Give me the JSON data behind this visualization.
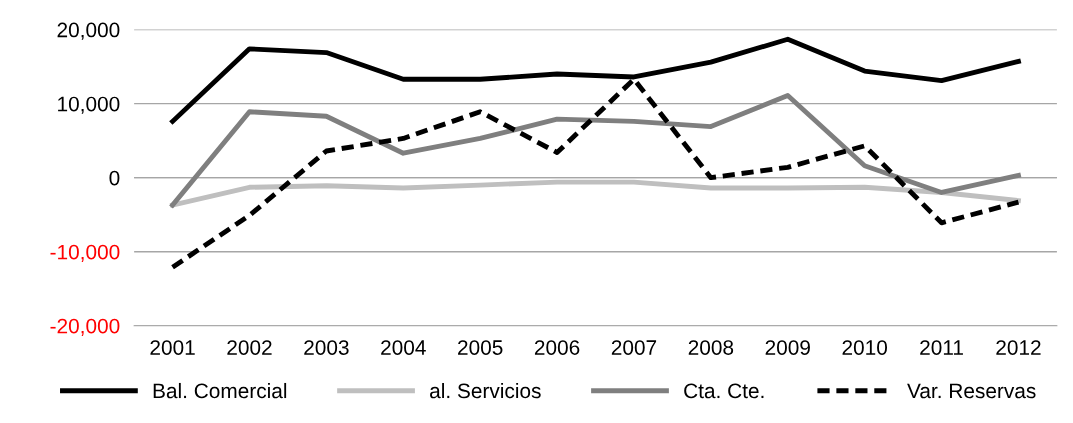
{
  "chart_data": {
    "type": "line",
    "categories": [
      "2001",
      "2002",
      "2003",
      "2004",
      "2005",
      "2006",
      "2007",
      "2008",
      "2009",
      "2010",
      "2011",
      "2012"
    ],
    "series": [
      {
        "name": "Bal. Comercial",
        "color": "#000000",
        "line_style": "solid",
        "values": [
          7600,
          17400,
          16900,
          13300,
          13300,
          14000,
          13600,
          15600,
          18700,
          14400,
          13100,
          15700
        ]
      },
      {
        "name": "al. Servicios",
        "color": "#bfbfbf",
        "line_style": "solid",
        "values": [
          -3700,
          -1300,
          -1100,
          -1400,
          -1000,
          -600,
          -600,
          -1400,
          -1400,
          -1300,
          -2000,
          -3100
        ]
      },
      {
        "name": "Cta. Cte.",
        "color": "#7f7f7f",
        "line_style": "solid",
        "values": [
          -3700,
          8900,
          8300,
          3300,
          5300,
          7900,
          7600,
          6900,
          11100,
          1600,
          -2000,
          300
        ]
      },
      {
        "name": "Var. Reservas",
        "color": "#000000",
        "line_style": "dashed",
        "values": [
          -12100,
          -5100,
          3600,
          5300,
          8900,
          3400,
          13300,
          0,
          1400,
          4300,
          -6100,
          -3300
        ]
      }
    ],
    "ylim": [
      -20000,
      20000
    ],
    "yticks": [
      {
        "value": -20000,
        "label": "-20,000"
      },
      {
        "value": -10000,
        "label": "-10,000"
      },
      {
        "value": 0,
        "label": "0"
      },
      {
        "value": 10000,
        "label": "10,000"
      },
      {
        "value": 20000,
        "label": "20,000"
      }
    ],
    "grid": "y",
    "legend": "bottom",
    "marker": "none"
  }
}
